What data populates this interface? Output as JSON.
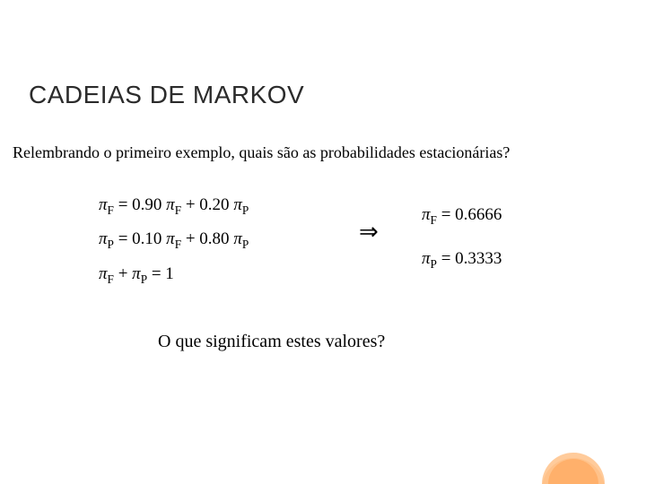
{
  "slide": {
    "title": "CADEIAS DE MARKOV",
    "subtitle": "Relembrando o primeiro exemplo, quais são as probabilidades estacionárias?",
    "equations_left": {
      "line1": "π_F = 0.90 π_F + 0.20 π_P",
      "line2": "π_P = 0.10 π_F + 0.80 π_P",
      "line3": "π_F + π_P = 1"
    },
    "arrow": "⇒",
    "equations_right": {
      "line1": "π_F = 0.6666",
      "line2": "π_P = 0.3333"
    },
    "question": "O que significam estes valores?"
  },
  "styling": {
    "slide_width": 720,
    "slide_height": 540,
    "background_color": "#ffffff",
    "title_color": "#2b2b2b",
    "title_fontsize": 28,
    "title_fontfamily": "Arial",
    "body_fontfamily": "Times New Roman",
    "body_fontsize": 19,
    "subtitle_fontsize": 18,
    "question_fontsize": 20,
    "decoration": {
      "type": "semicircle",
      "outer_color": "#ffc28a",
      "inner_color": "#ffb06b",
      "position": "bottom-right"
    }
  }
}
